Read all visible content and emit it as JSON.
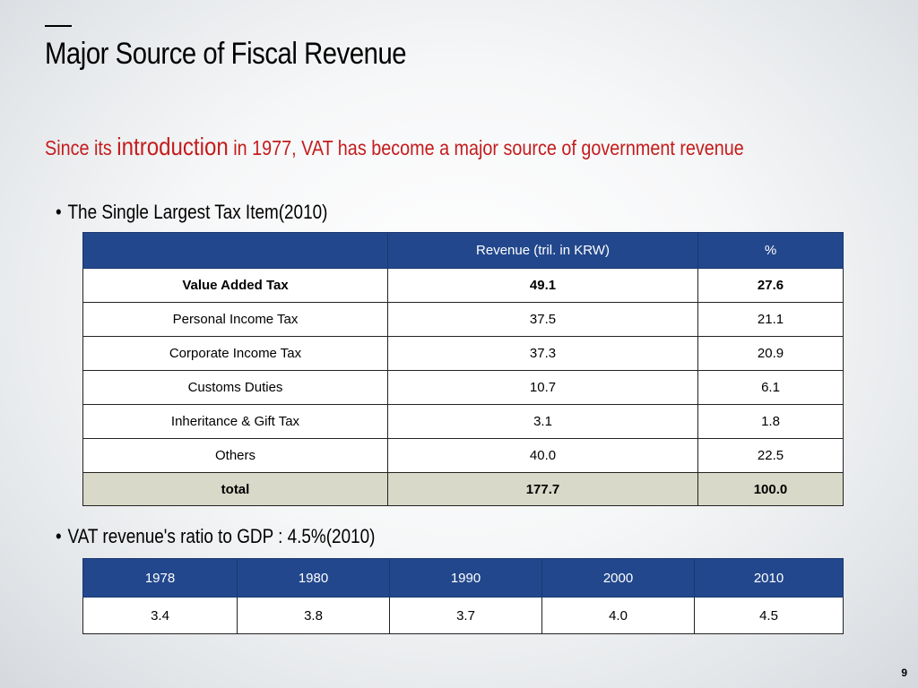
{
  "slide": {
    "title": "Major Source of Fiscal Revenue",
    "subtitle_part1": "Since its ",
    "subtitle_part2": "introduction",
    "subtitle_part3": " in 1977, VAT has become a major source of government revenue",
    "bullet1": "The Single Largest Tax Item(2010)",
    "bullet2": "VAT revenue's ratio to GDP : 4.5%(2010)",
    "page_number": "9"
  },
  "tax_table": {
    "headers": [
      "",
      "Revenue (tril. in KRW)",
      "%"
    ],
    "rows": [
      [
        "Value Added Tax",
        "49.1",
        "27.6"
      ],
      [
        "Personal Income Tax",
        "37.5",
        "21.1"
      ],
      [
        "Corporate Income Tax",
        "37.3",
        "20.9"
      ],
      [
        "Customs Duties",
        "10.7",
        "6.1"
      ],
      [
        "Inheritance & Gift Tax",
        "3.1",
        "1.8"
      ],
      [
        "Others",
        "40.0",
        "22.5"
      ],
      [
        "total",
        "177.7",
        "100.0"
      ]
    ]
  },
  "gdp_table": {
    "headers": [
      "1978",
      "1980",
      "1990",
      "2000",
      "2010"
    ],
    "values": [
      "3.4",
      "3.8",
      "3.7",
      "4.0",
      "4.5"
    ]
  },
  "colors": {
    "header_bg": "#22478c",
    "subtitle_red": "#c41c1c",
    "total_row_bg": "#d8d9c8"
  }
}
